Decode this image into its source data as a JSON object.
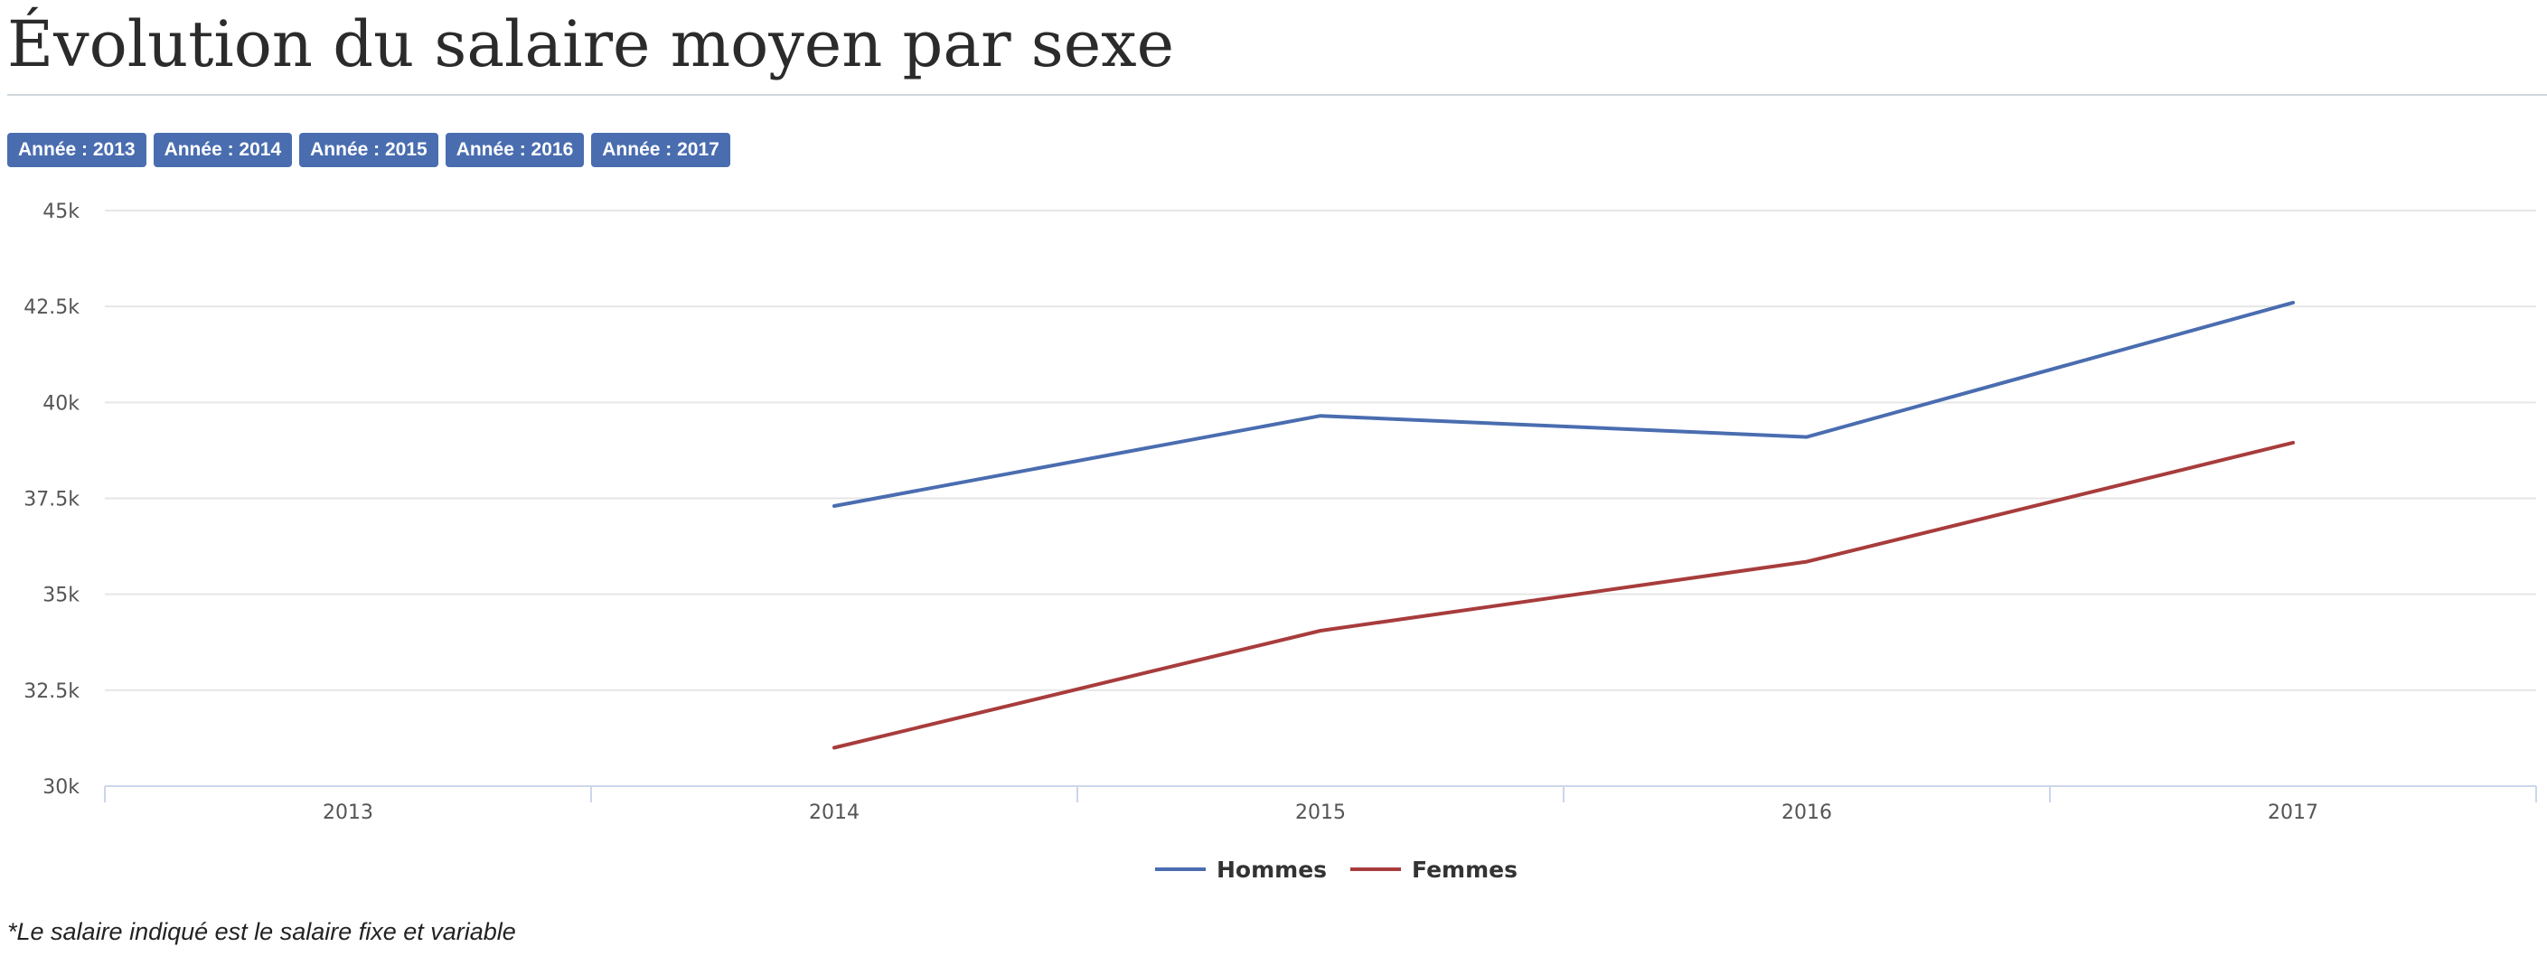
{
  "page": {
    "title": "Évolution du salaire moyen par sexe",
    "footnote": "*Le salaire indiqué est le salaire fixe et variable"
  },
  "filters": [
    {
      "label": "Année : 2013"
    },
    {
      "label": "Année : 2014"
    },
    {
      "label": "Année : 2015"
    },
    {
      "label": "Année : 2016"
    },
    {
      "label": "Année : 2017"
    }
  ],
  "colors": {
    "filter_badge": "#4a6db0",
    "hommes": "#4a6db0",
    "femmes": "#a83c3c",
    "grid": "#e6e6e6",
    "axis": "#ccd6eb"
  },
  "chart_data": {
    "type": "line",
    "title": "",
    "xlabel": "",
    "ylabel": "",
    "categories": [
      "2013",
      "2014",
      "2015",
      "2016",
      "2017"
    ],
    "ylim": [
      30000,
      45000
    ],
    "yticks": [
      {
        "value": 30000,
        "label": "30k"
      },
      {
        "value": 32500,
        "label": "32.5k"
      },
      {
        "value": 35000,
        "label": "35k"
      },
      {
        "value": 37500,
        "label": "37.5k"
      },
      {
        "value": 40000,
        "label": "40k"
      },
      {
        "value": 42500,
        "label": "42.5k"
      },
      {
        "value": 45000,
        "label": "45k"
      }
    ],
    "grid": true,
    "legend_position": "bottom-center",
    "series": [
      {
        "name": "Hommes",
        "color": "#4a6db0",
        "values": [
          null,
          37300,
          39650,
          39100,
          42600
        ]
      },
      {
        "name": "Femmes",
        "color": "#a83c3c",
        "values": [
          null,
          31000,
          34050,
          35850,
          38950
        ]
      }
    ]
  }
}
